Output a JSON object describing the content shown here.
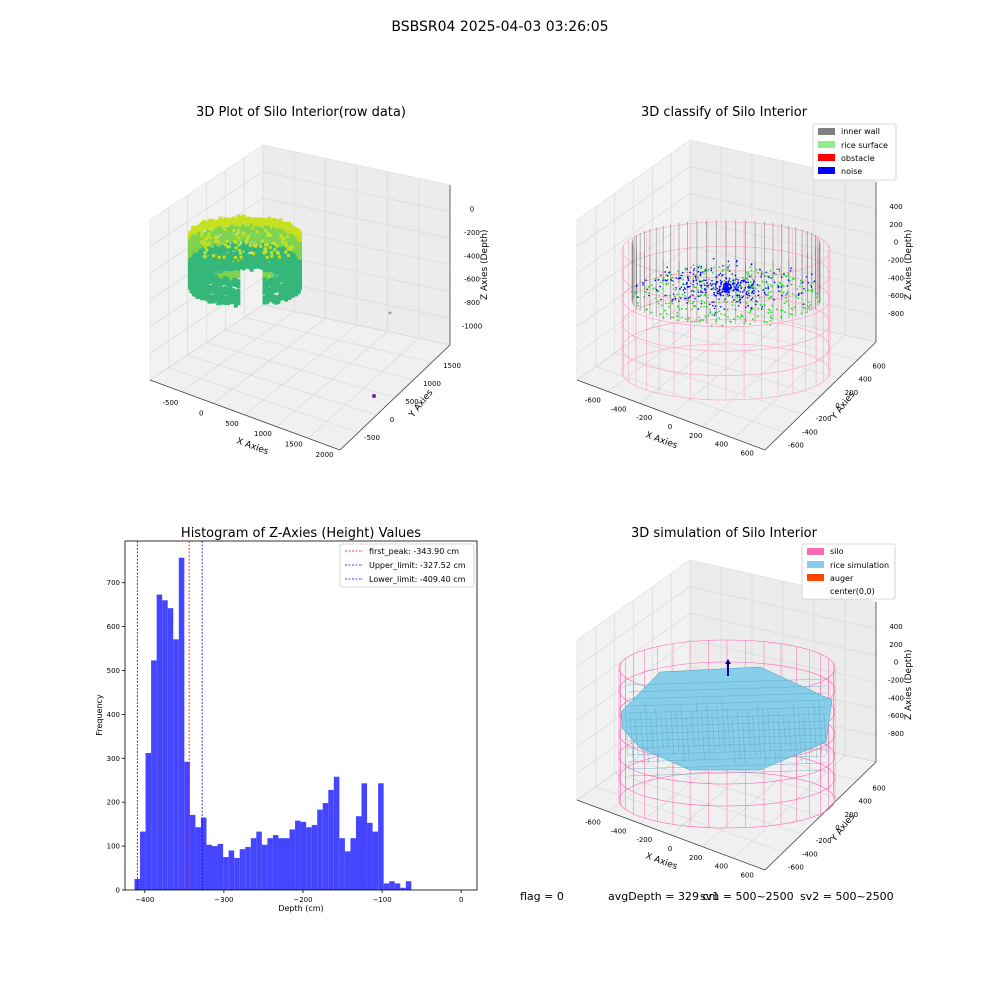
{
  "figure": {
    "suptitle": "BSBSR04 2025-04-03 03:26:05",
    "footer": {
      "flag": "flag = 0",
      "avg_depth": "avgDepth = 329 cm",
      "sv1": "sv1 = 500~2500",
      "sv2": "sv2 = 500~2500"
    }
  },
  "panel_raw": {
    "title": "3D Plot of Silo Interior(row data)",
    "xlabel": "X Axies",
    "ylabel": "Y Axies",
    "zlabel": "Z Axies (Depth)",
    "x_ticks": [
      "-500",
      "0",
      "500",
      "1000",
      "1500",
      "2000"
    ],
    "y_ticks": [
      "-500",
      "0",
      "500",
      "1000",
      "1500"
    ],
    "z_ticks": [
      "0",
      "-200",
      "-400",
      "-600",
      "-800",
      "-1000"
    ],
    "colors": {
      "top": "#c7e020",
      "mid": "#7fd34e",
      "low": "#35b779",
      "outlier": "#6a2c8f",
      "outlier2": "#9aa0a6"
    }
  },
  "panel_classify": {
    "title": "3D classify of Silo Interior",
    "xlabel": "X Axies",
    "ylabel": "Y Axies",
    "zlabel": "Z Axies (Depth)",
    "x_ticks": [
      "-600",
      "-400",
      "-200",
      "0",
      "200",
      "400",
      "600"
    ],
    "y_ticks": [
      "-600",
      "-400",
      "-200",
      "0",
      "200",
      "400",
      "600"
    ],
    "z_ticks": [
      "400",
      "200",
      "0",
      "-200",
      "-400",
      "-600",
      "-800"
    ],
    "legend": [
      {
        "label": "inner wall",
        "color": "#808080"
      },
      {
        "label": "rice surface",
        "color": "#90ee90"
      },
      {
        "label": "obstacle",
        "color": "#ff0000"
      },
      {
        "label": "noise",
        "color": "#0000ff"
      }
    ],
    "colors": {
      "silo": "#ff9ec4",
      "wall": "#707070",
      "rice": "#22e022",
      "noise": "#0000ff"
    }
  },
  "panel_sim": {
    "title": "3D simulation of Silo Interior",
    "xlabel": "X Axies",
    "ylabel": "Y Axies",
    "zlabel": "Z Axies (Depth)",
    "x_ticks": [
      "-600",
      "-400",
      "-200",
      "0",
      "200",
      "400",
      "600"
    ],
    "y_ticks": [
      "-600",
      "-400",
      "-200",
      "0",
      "200",
      "400",
      "600"
    ],
    "z_ticks": [
      "400",
      "200",
      "0",
      "-200",
      "-400",
      "-600",
      "-800"
    ],
    "legend": [
      {
        "label": "silo",
        "color": "#ff69b4"
      },
      {
        "label": "rice simulation",
        "color": "#87ceeb"
      },
      {
        "label": "auger",
        "color": "#ff4500"
      },
      {
        "label": "center(0,0)",
        "color": ""
      }
    ],
    "colors": {
      "silo": "#ff69b4",
      "rice": "#87ceeb",
      "auger": "#00008b"
    }
  },
  "chart_data": {
    "type": "bar",
    "title": "Histogram of Z-Axies (Height) Values",
    "xlabel": "Depth (cm)",
    "ylabel": "Frequency",
    "xlim": [
      -425,
      20
    ],
    "ylim": [
      0,
      795
    ],
    "x_ticks": [
      -400,
      -300,
      -200,
      -100,
      0
    ],
    "y_ticks": [
      0,
      100,
      200,
      300,
      400,
      500,
      600,
      700
    ],
    "bar_color": "#4545ff",
    "bin_edges": [
      -413,
      -406,
      -399,
      -392,
      -385,
      -378,
      -371,
      -364,
      -357,
      -350,
      -343,
      -336,
      -329,
      -322,
      -315,
      -308,
      -301,
      -294,
      -287,
      -280,
      -273,
      -266,
      -259,
      -252,
      -245,
      -238,
      -231,
      -224,
      -217,
      -210,
      -203,
      -196,
      -189,
      -182,
      -175,
      -168,
      -161,
      -154,
      -147,
      -140,
      -133,
      -126,
      -119,
      -112,
      -105,
      -98,
      -91,
      -84,
      -77,
      -70,
      -63,
      -56,
      -49,
      -42,
      -35,
      -28,
      -21,
      -14,
      -7,
      0
    ],
    "counts": [
      25,
      133,
      312,
      523,
      673,
      660,
      642,
      571,
      757,
      292,
      171,
      143,
      165,
      103,
      100,
      105,
      75,
      90,
      73,
      93,
      98,
      118,
      133,
      103,
      118,
      125,
      118,
      118,
      138,
      158,
      155,
      143,
      148,
      183,
      198,
      228,
      258,
      118,
      88,
      118,
      168,
      243,
      153,
      133,
      243,
      15,
      20,
      15,
      5,
      20,
      0,
      0,
      0,
      0,
      0,
      0,
      0,
      0,
      0
    ],
    "vlines": [
      {
        "label": "first_peak: -343.90 cm",
        "x": -343.9,
        "color": "#ff0000"
      },
      {
        "label": "Upper_limit: -327.52 cm",
        "x": -327.52,
        "color": "#0000ff"
      },
      {
        "label": "Lower_limit: -409.40 cm",
        "x": -409.4,
        "color": "#0000ff"
      }
    ],
    "legend_position": "upper right"
  }
}
